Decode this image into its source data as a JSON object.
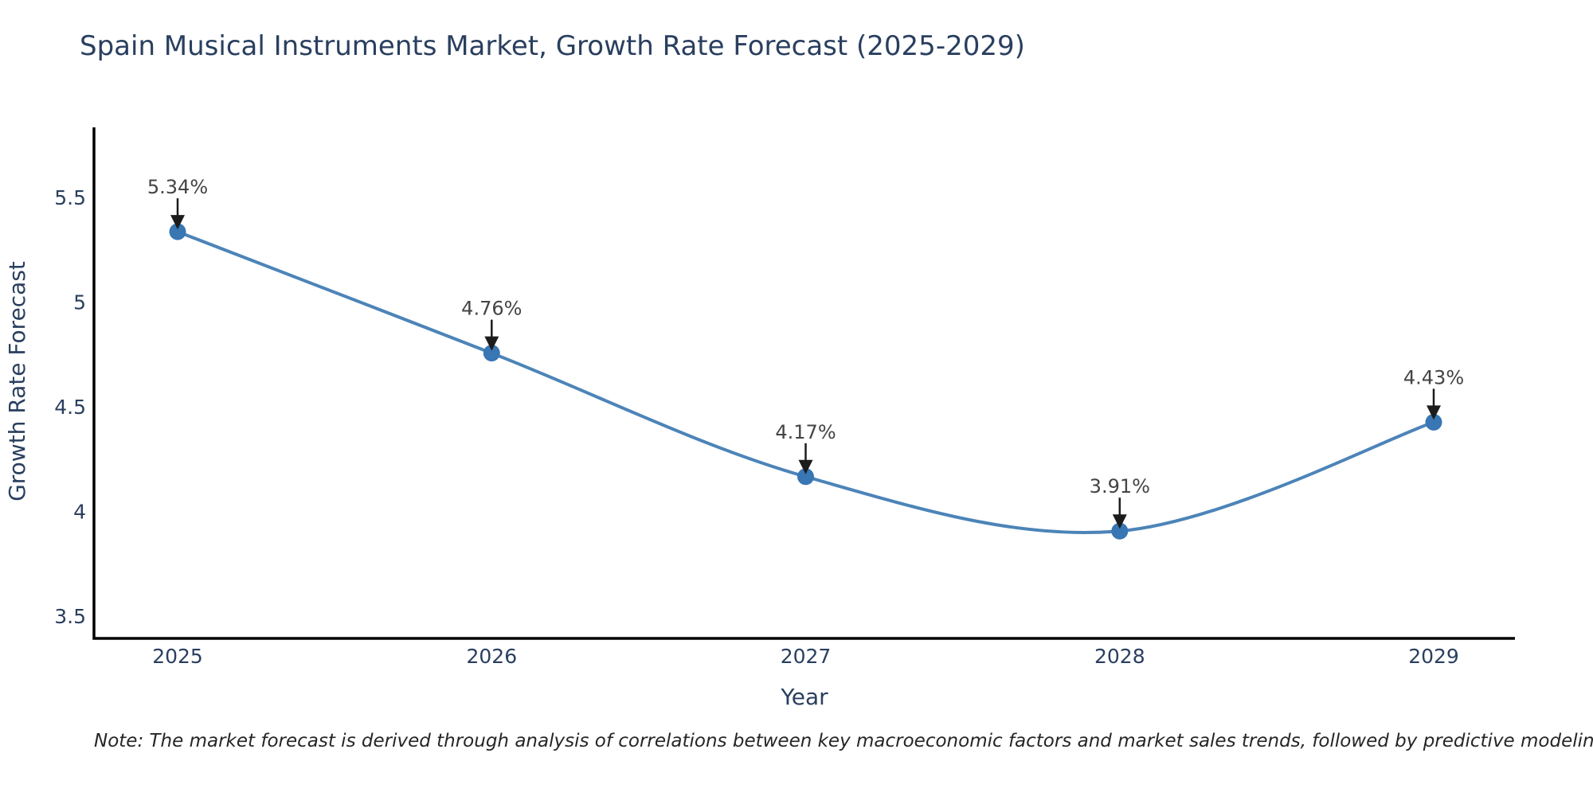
{
  "title": "Spain Musical Instruments Market, Growth Rate Forecast (2025-2029)",
  "footnote": "Note: The market forecast is derived through analysis of correlations between key macroeconomic factors and market sales trends, followed by predictive modeling to project future sales",
  "chart_data": {
    "type": "line",
    "line_shape": "spline",
    "title": "Spain Musical Instruments Market, Growth Rate Forecast (2025-2029)",
    "xlabel": "Year",
    "ylabel": "Growth Rate Forecast",
    "x": [
      2025,
      2026,
      2027,
      2028,
      2029
    ],
    "values": [
      5.34,
      4.76,
      4.17,
      3.91,
      4.43
    ],
    "point_labels": [
      "5.34%",
      "4.76%",
      "4.17%",
      "3.91%",
      "4.43%"
    ],
    "xticklabels": [
      "2025",
      "2026",
      "2027",
      "2028",
      "2029"
    ],
    "yticks": [
      3.5,
      4,
      4.5,
      5,
      5.5
    ],
    "yticklabels": [
      "3.5",
      "4",
      "4.5",
      "5",
      "5.5"
    ],
    "xlim": [
      2024.73,
      2029.26
    ],
    "ylim": [
      3.4,
      5.84
    ],
    "grid": false,
    "legend": false,
    "markers": true,
    "annotations_style": "arrow-down-to-point",
    "colors": {
      "line": "#4c84b8",
      "marker": "#3876b4",
      "axis_line": "#000000",
      "tick_text": "#2a3f5f",
      "title_text": "#2a3f5f",
      "annotation_text": "#444444",
      "arrow": "#1c1c1c",
      "background": "#ffffff"
    }
  }
}
